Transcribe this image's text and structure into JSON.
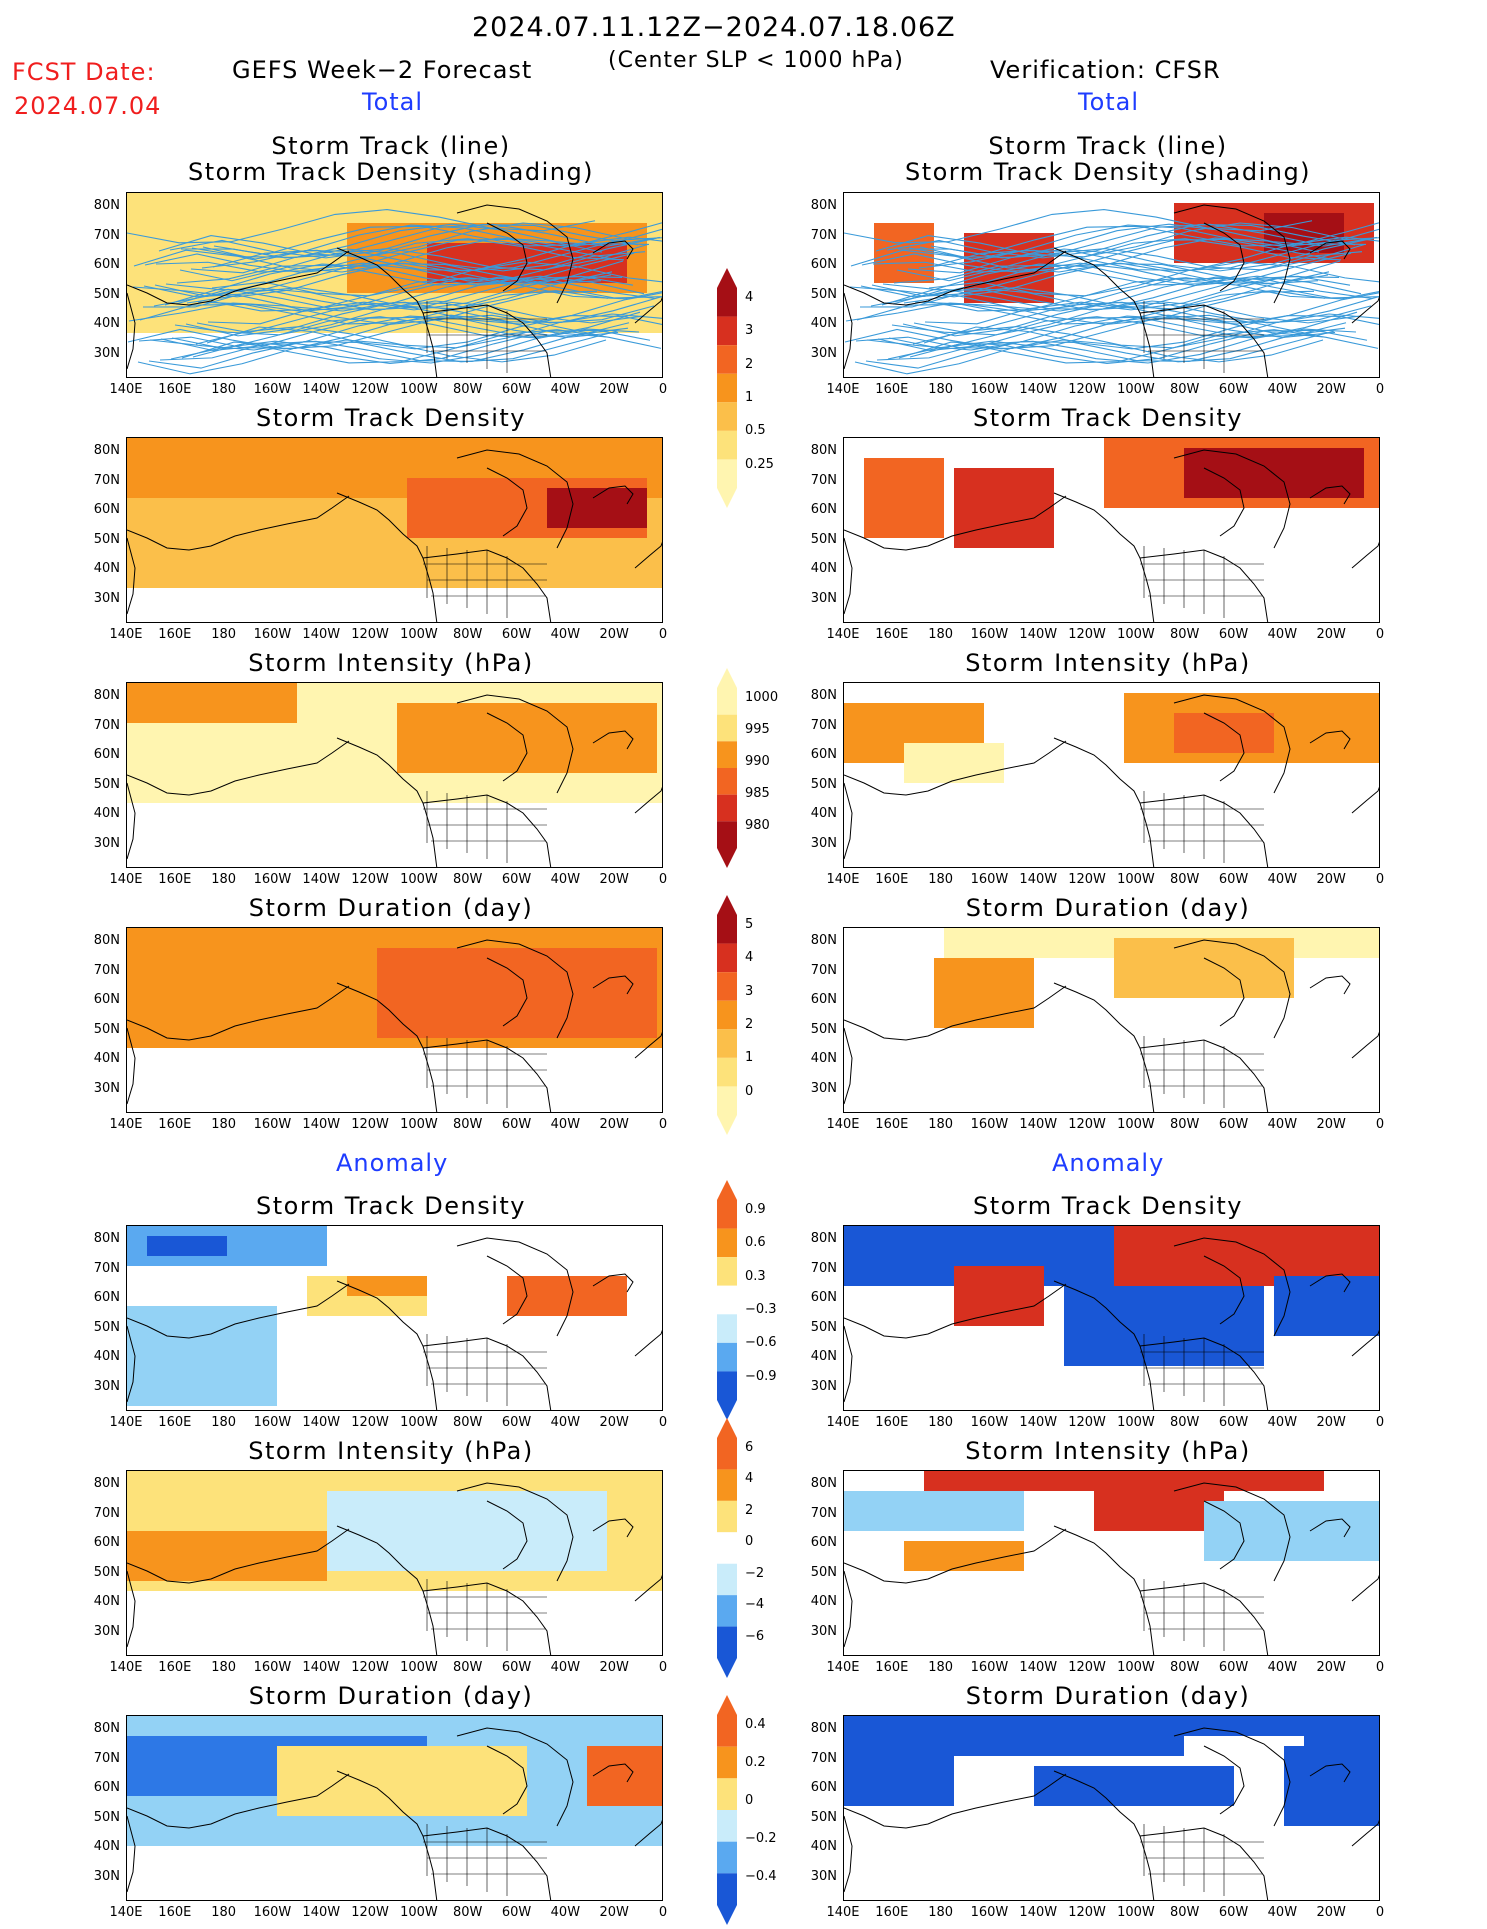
{
  "header": {
    "date_range": "2024.07.11.12Z−2024.07.18.06Z",
    "criterion": "(Center SLP < 1000 hPa)",
    "fcst_label": "FCST Date:",
    "fcst_date": "2024.07.04",
    "left_title": "GEFS Week−2 Forecast",
    "right_title": "Verification: CFSR",
    "total_label": "Total",
    "anomaly_label": "Anomaly"
  },
  "panel_titles": {
    "track_line": "Storm Track (line)",
    "track_shading": "Storm Track Density (shading)",
    "density": "Storm Track Density",
    "intensity": "Storm Intensity (hPa)",
    "duration": "Storm Duration (day)"
  },
  "axes": {
    "lat_labels": [
      "80N",
      "70N",
      "60N",
      "50N",
      "40N",
      "30N"
    ],
    "lon_labels": [
      "140E",
      "160E",
      "180",
      "160W",
      "140W",
      "120W",
      "100W",
      "80W",
      "60W",
      "40W",
      "20W",
      "0"
    ]
  },
  "colorbars": {
    "density_total": [
      "4",
      "3",
      "2",
      "1",
      "0.5",
      "0.25"
    ],
    "intensity_total": [
      "1000",
      "995",
      "990",
      "985",
      "980"
    ],
    "duration_total": [
      "5",
      "4",
      "3",
      "2",
      "1",
      "0"
    ],
    "density_anom": [
      "0.9",
      "0.6",
      "0.3",
      "−0.3",
      "−0.6",
      "−0.9"
    ],
    "intensity_anom": [
      "6",
      "4",
      "2",
      "0",
      "−2",
      "−4",
      "−6"
    ],
    "duration_anom": [
      "0.4",
      "0.2",
      "0",
      "−0.2",
      "−0.4"
    ]
  },
  "colors": {
    "warm": [
      "#fff5b0",
      "#fde27a",
      "#fbbf4a",
      "#f7941d",
      "#f26522",
      "#d7301f",
      "#a50f15"
    ],
    "cool": [
      "#c9ecfa",
      "#93d2f5",
      "#5aa9f0",
      "#2d78e6",
      "#1957d6"
    ],
    "track_line": "#3a9ad9"
  }
}
